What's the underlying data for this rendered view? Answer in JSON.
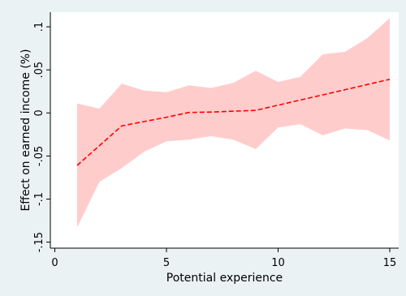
{
  "chart_data": {
    "type": "line",
    "title": "",
    "xlabel": "Potential experience",
    "ylabel": "Effect on earned income (%)",
    "xlim": [
      -0.2,
      15.4
    ],
    "ylim": [
      -0.157,
      0.117
    ],
    "x_ticks": [
      0,
      5,
      10,
      15
    ],
    "x_tick_labels": [
      "0",
      "5",
      "10",
      "15"
    ],
    "y_ticks": [
      -0.15,
      -0.1,
      -0.05,
      0,
      0.05,
      0.1
    ],
    "y_tick_labels": [
      "-.15",
      "-.1",
      "-.05",
      "0",
      ".05",
      ".1"
    ],
    "grid": false,
    "x": [
      1,
      2,
      3,
      4,
      5,
      6,
      7,
      8,
      9,
      10,
      11,
      12,
      13,
      14,
      15
    ],
    "series": [
      {
        "style": "dashed",
        "color": "#ff0000",
        "values": [
          -0.061,
          -0.038,
          -0.015,
          -0.01,
          -0.005,
          0.0005,
          0.001,
          0.002,
          0.003,
          0.009,
          0.015,
          0.021,
          0.027,
          0.033,
          0.039
        ]
      }
    ],
    "confidence_band": {
      "color": "#ffcccc",
      "upper": [
        0.011,
        0.005,
        0.034,
        0.026,
        0.024,
        0.032,
        0.029,
        0.035,
        0.049,
        0.036,
        0.042,
        0.068,
        0.071,
        0.087,
        0.11
      ],
      "lower": [
        -0.133,
        -0.08,
        -0.064,
        -0.045,
        -0.033,
        -0.031,
        -0.027,
        -0.031,
        -0.042,
        -0.017,
        -0.013,
        -0.026,
        -0.018,
        -0.02,
        -0.032
      ]
    }
  }
}
